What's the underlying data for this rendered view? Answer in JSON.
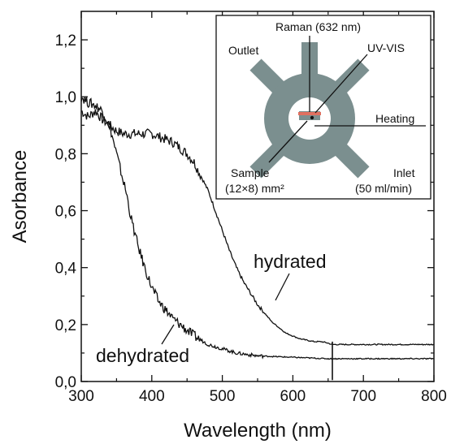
{
  "chart_data": {
    "type": "line",
    "xlabel": "Wavelength (nm)",
    "ylabel": "Asorbance",
    "xlim": [
      300,
      800
    ],
    "ylim": [
      0.0,
      1.3
    ],
    "x_ticks": [
      "300",
      "400",
      "500",
      "600",
      "700",
      "800"
    ],
    "y_ticks": [
      "0,0",
      "0,2",
      "0,4",
      "0,6",
      "0,8",
      "1,0",
      "1,2"
    ],
    "grid": false,
    "series": [
      {
        "name": "hydrated",
        "x": [
          300,
          310,
          320,
          330,
          340,
          350,
          360,
          370,
          380,
          390,
          400,
          410,
          420,
          430,
          440,
          450,
          460,
          470,
          480,
          490,
          500,
          510,
          520,
          530,
          540,
          550,
          560,
          570,
          580,
          590,
          600,
          610,
          620,
          630,
          640,
          650,
          655,
          660,
          670,
          700,
          750,
          800
        ],
        "values": [
          0.95,
          0.93,
          0.95,
          0.92,
          0.9,
          0.88,
          0.87,
          0.87,
          0.87,
          0.87,
          0.87,
          0.86,
          0.85,
          0.84,
          0.82,
          0.8,
          0.77,
          0.72,
          0.67,
          0.6,
          0.53,
          0.46,
          0.4,
          0.35,
          0.31,
          0.27,
          0.24,
          0.21,
          0.19,
          0.17,
          0.16,
          0.15,
          0.145,
          0.14,
          0.14,
          0.135,
          0.13,
          0.13,
          0.13,
          0.13,
          0.13,
          0.13
        ]
      },
      {
        "name": "dehydrated",
        "x": [
          300,
          310,
          320,
          330,
          340,
          350,
          360,
          365,
          370,
          380,
          390,
          400,
          410,
          420,
          430,
          440,
          450,
          460,
          470,
          480,
          500,
          520,
          550,
          600,
          650,
          655,
          660,
          670,
          700,
          750,
          800
        ],
        "values": [
          1.0,
          0.98,
          0.97,
          0.95,
          0.9,
          0.8,
          0.7,
          0.65,
          0.58,
          0.48,
          0.4,
          0.33,
          0.28,
          0.25,
          0.22,
          0.2,
          0.18,
          0.16,
          0.145,
          0.13,
          0.115,
          0.1,
          0.09,
          0.085,
          0.08,
          0.08,
          0.08,
          0.08,
          0.08,
          0.08,
          0.08
        ]
      }
    ],
    "annotations": [
      "hydrated",
      "dehydrated"
    ]
  },
  "inset": {
    "labels": {
      "raman": "Raman (632 nm)",
      "outlet": "Outlet",
      "uvvis": "UV-VIS",
      "heating": "Heating",
      "sample": "Sample",
      "sample_size": "(12×8) mm²",
      "inlet": "Inlet",
      "flow": "(50 ml/min)"
    },
    "colors": {
      "cell": "#7b8f8f",
      "sample_bar": "#e07060"
    }
  }
}
